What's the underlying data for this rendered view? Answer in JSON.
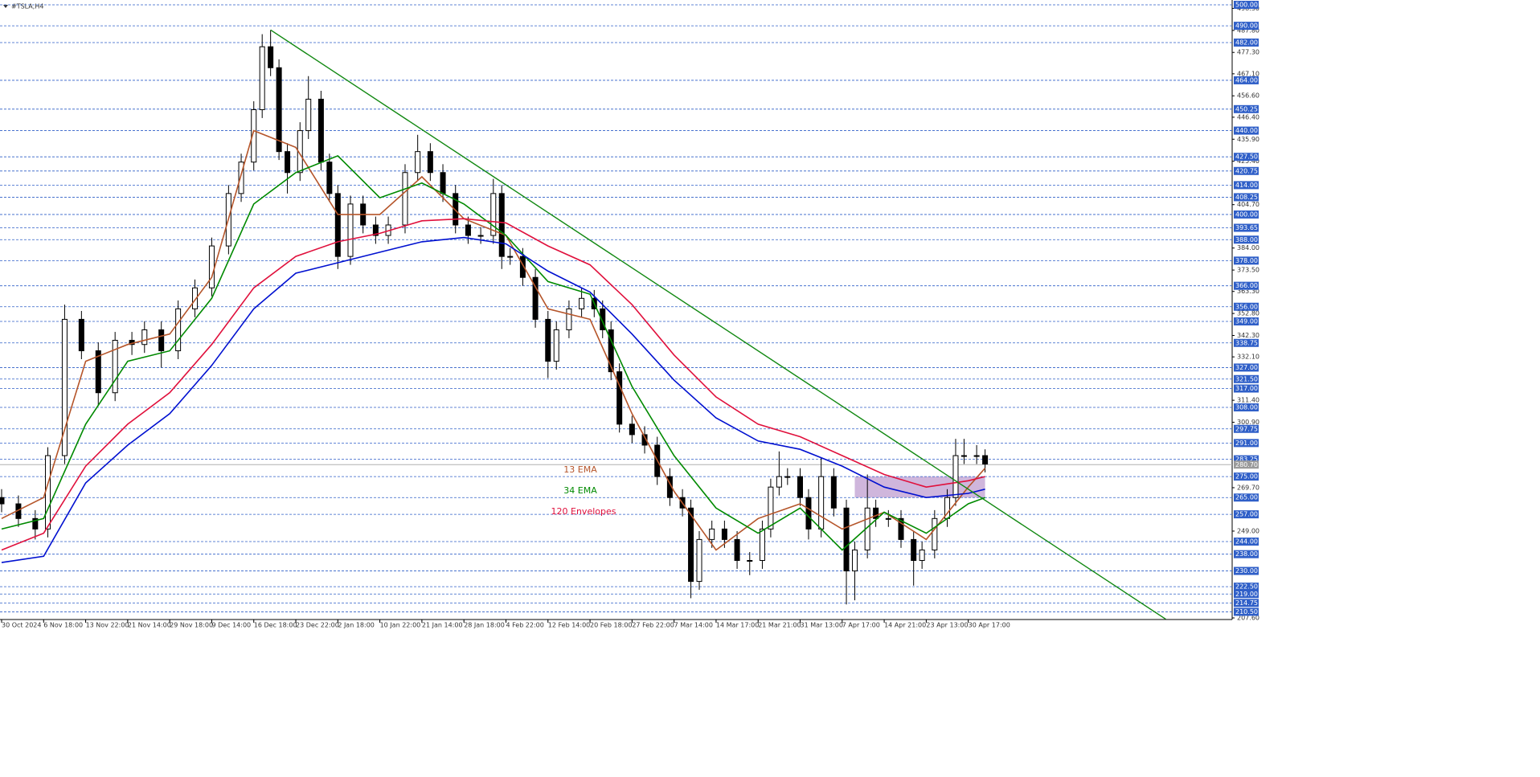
{
  "chart_data": {
    "type": "candlestick",
    "title": "#TSLA,H4",
    "xlim": [
      0,
      292.6
    ],
    "ylim": [
      207.6,
      500
    ],
    "xticks": [
      {
        "value": 0,
        "label": "30 Oct 2024"
      },
      {
        "value": 10,
        "label": "6 Nov 18:00"
      },
      {
        "value": 20,
        "label": "13 Nov 22:00"
      },
      {
        "value": 30,
        "label": "21 Nov 14:00"
      },
      {
        "value": 40,
        "label": "29 Nov 18:00"
      },
      {
        "value": 50,
        "label": "9 Dec 14:00"
      },
      {
        "value": 60,
        "label": "16 Dec 18:00"
      },
      {
        "value": 70,
        "label": "23 Dec 22:00"
      },
      {
        "value": 80,
        "label": "2 Jan 18:00"
      },
      {
        "value": 90,
        "label": "10 Jan 22:00"
      },
      {
        "value": 100,
        "label": "21 Jan 14:00"
      },
      {
        "value": 110,
        "label": "28 Jan 18:00"
      },
      {
        "value": 120,
        "label": "4 Feb 22:00"
      },
      {
        "value": 130,
        "label": "12 Feb 14:00"
      },
      {
        "value": 140,
        "label": "20 Feb 18:00"
      },
      {
        "value": 150,
        "label": "27 Feb 22:00"
      },
      {
        "value": 160,
        "label": "7 Mar 14:00"
      },
      {
        "value": 170,
        "label": "14 Mar 17:00"
      },
      {
        "value": 180,
        "label": "21 Mar 21:00"
      },
      {
        "value": 190,
        "label": "31 Mar 13:00"
      },
      {
        "value": 200,
        "label": "7 Apr 17:00"
      },
      {
        "value": 210,
        "label": "14 Apr 21:00"
      },
      {
        "value": 220,
        "label": "23 Apr 13:00"
      },
      {
        "value": 230,
        "label": "30 Apr 17:00"
      }
    ],
    "yticks": [
      {
        "value": 498.3,
        "label": "498.30"
      },
      {
        "value": 487.8,
        "label": "487.80"
      },
      {
        "value": 477.3,
        "label": "477.30"
      },
      {
        "value": 467.1,
        "label": "467.10"
      },
      {
        "value": 456.6,
        "label": "456.60"
      },
      {
        "value": 446.4,
        "label": "446.40"
      },
      {
        "value": 435.9,
        "label": "435.90"
      },
      {
        "value": 425.4,
        "label": "425.40"
      },
      {
        "value": 404.7,
        "label": "404.70"
      },
      {
        "value": 384,
        "label": "384.00"
      },
      {
        "value": 373.5,
        "label": "373.50"
      },
      {
        "value": 363.3,
        "label": "363.30"
      },
      {
        "value": 352.8,
        "label": "352.80"
      },
      {
        "value": 342.3,
        "label": "342.30"
      },
      {
        "value": 332.1,
        "label": "332.10"
      },
      {
        "value": 311.4,
        "label": "311.40"
      },
      {
        "value": 300.9,
        "label": "300.90"
      },
      {
        "value": 269.7,
        "label": "269.70"
      },
      {
        "value": 249,
        "label": "249.00"
      },
      {
        "value": 207.6,
        "label": "207.60"
      }
    ],
    "levels": [
      {
        "value": 500,
        "label": "500.00"
      },
      {
        "value": 490,
        "label": "490.00"
      },
      {
        "value": 482,
        "label": "482.00"
      },
      {
        "value": 464,
        "label": "464.00"
      },
      {
        "value": 450.25,
        "label": "450.25"
      },
      {
        "value": 440,
        "label": "440.00"
      },
      {
        "value": 427.5,
        "label": "427.50"
      },
      {
        "value": 420.75,
        "label": "420.75"
      },
      {
        "value": 414,
        "label": "414.00"
      },
      {
        "value": 408.25,
        "label": "408.25"
      },
      {
        "value": 400,
        "label": "400.00"
      },
      {
        "value": 393.65,
        "label": "393.65"
      },
      {
        "value": 388,
        "label": "388.00"
      },
      {
        "value": 378,
        "label": "378.00"
      },
      {
        "value": 366,
        "label": "366.00"
      },
      {
        "value": 356,
        "label": "356.00"
      },
      {
        "value": 349,
        "label": "349.00"
      },
      {
        "value": 338.75,
        "label": "338.75"
      },
      {
        "value": 327,
        "label": "327.00"
      },
      {
        "value": 321.5,
        "label": "321.50"
      },
      {
        "value": 317,
        "label": "317.00"
      },
      {
        "value": 308,
        "label": "308.00"
      },
      {
        "value": 297.75,
        "label": "297.75"
      },
      {
        "value": 291,
        "label": "291.00"
      },
      {
        "value": 283.25,
        "label": "283.25"
      },
      {
        "value": 275,
        "label": "275.00"
      },
      {
        "value": 265,
        "label": "265.00"
      },
      {
        "value": 257,
        "label": "257.00"
      },
      {
        "value": 244,
        "label": "244.00"
      },
      {
        "value": 238,
        "label": "238.00"
      },
      {
        "value": 230,
        "label": "230.00"
      },
      {
        "value": 222.5,
        "label": "222.50"
      },
      {
        "value": 219,
        "label": "219.00"
      },
      {
        "value": 214.75,
        "label": "214.75"
      },
      {
        "value": 210.5,
        "label": "210.50"
      }
    ],
    "level_color": "#2f5fc8",
    "last_price": {
      "value": 280.7,
      "label": "280.70"
    },
    "candles": {
      "color": "#000000",
      "x": [
        0,
        4,
        8,
        11,
        15,
        19,
        23,
        27,
        31,
        34,
        38,
        42,
        46,
        50,
        54,
        57,
        60,
        62,
        64,
        66,
        68,
        71,
        73,
        76,
        78,
        80,
        83,
        86,
        89,
        92,
        96,
        99,
        102,
        105,
        108,
        111,
        114,
        117,
        119,
        121,
        124,
        127,
        130,
        132,
        135,
        138,
        141,
        143,
        145,
        147,
        150,
        153,
        156,
        159,
        162,
        164,
        166,
        169,
        172,
        175,
        178,
        181,
        183,
        185,
        187,
        190,
        192,
        195,
        198,
        201,
        203,
        206,
        208,
        211,
        214,
        217,
        219,
        222,
        225,
        227,
        229,
        232,
        234
      ],
      "open": [
        265,
        262,
        255,
        250,
        285,
        350,
        335,
        315,
        340,
        338,
        345,
        335,
        355,
        365,
        385,
        410,
        425,
        450,
        480,
        470,
        430,
        420,
        440,
        455,
        425,
        410,
        380,
        405,
        395,
        390,
        395,
        420,
        430,
        420,
        410,
        395,
        390,
        390,
        410,
        380,
        380,
        370,
        350,
        330,
        345,
        355,
        360,
        355,
        345,
        325,
        300,
        295,
        290,
        275,
        265,
        260,
        225,
        245,
        250,
        245,
        235,
        235,
        250,
        270,
        275,
        275,
        265,
        250,
        275,
        260,
        230,
        240,
        260,
        255,
        255,
        245,
        235,
        240,
        255,
        265,
        285,
        285,
        285
      ],
      "high": [
        269,
        266,
        259,
        289,
        357,
        354,
        339,
        344,
        344,
        349,
        349,
        359,
        369,
        389,
        414,
        429,
        454,
        486,
        488,
        474,
        434,
        444,
        466,
        459,
        429,
        414,
        409,
        409,
        399,
        399,
        424,
        438,
        434,
        424,
        414,
        399,
        394,
        417,
        414,
        384,
        384,
        374,
        354,
        349,
        359,
        365,
        364,
        359,
        349,
        329,
        304,
        299,
        294,
        279,
        269,
        264,
        249,
        254,
        254,
        249,
        239,
        254,
        274,
        287,
        279,
        279,
        269,
        284,
        279,
        264,
        244,
        276,
        264,
        259,
        259,
        249,
        244,
        259,
        269,
        293,
        293,
        290,
        288
      ],
      "low": [
        258,
        251,
        245,
        246,
        281,
        331,
        309,
        311,
        333,
        334,
        327,
        331,
        351,
        361,
        381,
        406,
        421,
        446,
        466,
        426,
        410,
        416,
        436,
        421,
        406,
        374,
        376,
        391,
        386,
        386,
        391,
        416,
        416,
        406,
        391,
        386,
        386,
        386,
        374,
        376,
        366,
        346,
        322,
        326,
        341,
        351,
        351,
        341,
        321,
        296,
        291,
        286,
        271,
        261,
        256,
        217,
        221,
        241,
        241,
        231,
        228,
        231,
        246,
        266,
        271,
        261,
        245,
        246,
        256,
        214,
        216,
        236,
        251,
        251,
        241,
        223,
        231,
        236,
        251,
        261,
        281,
        281,
        277
      ],
      "close": [
        262,
        255,
        250,
        285,
        350,
        335,
        315,
        340,
        338,
        345,
        335,
        355,
        365,
        385,
        410,
        425,
        450,
        480,
        470,
        430,
        420,
        440,
        455,
        425,
        410,
        380,
        405,
        395,
        390,
        395,
        420,
        430,
        420,
        410,
        395,
        390,
        390,
        410,
        380,
        380,
        370,
        350,
        330,
        345,
        355,
        360,
        355,
        345,
        325,
        300,
        295,
        290,
        275,
        265,
        260,
        225,
        245,
        250,
        245,
        235,
        235,
        250,
        270,
        275,
        275,
        265,
        250,
        275,
        260,
        230,
        240,
        260,
        255,
        255,
        245,
        235,
        240,
        255,
        265,
        285,
        285,
        285,
        281
      ]
    },
    "series": [
      {
        "name": "13 EMA",
        "color": "#b5552a",
        "x": [
          0,
          10,
          20,
          30,
          40,
          50,
          60,
          70,
          80,
          90,
          100,
          110,
          120,
          130,
          140,
          150,
          160,
          170,
          180,
          190,
          200,
          210,
          220,
          230,
          234
        ],
        "values": [
          255,
          265,
          330,
          338,
          343,
          370,
          440,
          432,
          400,
          400,
          418,
          398,
          390,
          355,
          350,
          305,
          268,
          240,
          255,
          262,
          250,
          258,
          245,
          270,
          279
        ]
      },
      {
        "name": "34 EMA",
        "color": "#008a00",
        "x": [
          0,
          10,
          20,
          30,
          40,
          50,
          60,
          70,
          80,
          90,
          100,
          110,
          120,
          130,
          140,
          150,
          160,
          170,
          180,
          190,
          200,
          210,
          220,
          230,
          234
        ],
        "values": [
          250,
          255,
          300,
          330,
          335,
          360,
          405,
          420,
          428,
          408,
          415,
          405,
          390,
          368,
          362,
          318,
          285,
          260,
          248,
          260,
          240,
          258,
          248,
          262,
          265
        ]
      },
      {
        "name": "120 Envelopes",
        "color": "#e0103c",
        "x": [
          0,
          10,
          20,
          30,
          40,
          50,
          60,
          70,
          80,
          90,
          100,
          110,
          120,
          130,
          140,
          150,
          160,
          170,
          180,
          190,
          200,
          210,
          220,
          230,
          234
        ],
        "values": [
          240,
          248,
          280,
          300,
          315,
          338,
          365,
          380,
          387,
          391,
          397,
          398,
          396,
          385,
          376,
          357,
          333,
          313,
          300,
          294,
          285,
          276,
          270,
          273,
          275
        ]
      },
      {
        "color": "#0010d0",
        "x": [
          0,
          10,
          20,
          30,
          40,
          50,
          60,
          70,
          80,
          90,
          100,
          110,
          120,
          130,
          140,
          150,
          160,
          170,
          180,
          190,
          200,
          210,
          220,
          230,
          234
        ],
        "values": [
          234,
          237,
          272,
          290,
          305,
          328,
          355,
          372,
          377,
          382,
          387,
          389,
          386,
          373,
          363,
          343,
          321,
          303,
          292,
          288,
          280,
          270,
          265,
          267,
          269
        ]
      }
    ],
    "trendline": {
      "color": "#118811",
      "x": [
        64,
        277
      ],
      "values": [
        488,
        207
      ]
    },
    "zone": {
      "color": "#c7a9d6",
      "x": [
        203,
        234
      ],
      "values": [
        265,
        275
      ]
    }
  }
}
